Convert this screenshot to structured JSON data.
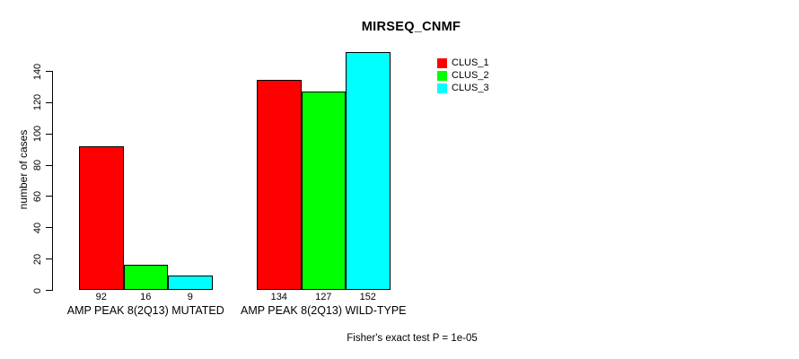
{
  "chart_data": {
    "type": "bar",
    "title": "MIRSEQ_CNMF",
    "ylabel": "number of cases",
    "xlabel": "",
    "footnote": "Fisher's exact test P = 1e-05",
    "yticks": [
      0,
      20,
      40,
      60,
      80,
      100,
      120,
      140
    ],
    "ylim": [
      0,
      152
    ],
    "grid": false,
    "legend_position": "top-right",
    "categories": [
      "AMP PEAK 8(2Q13) MUTATED",
      "AMP PEAK 8(2Q13) WILD-TYPE"
    ],
    "series": [
      {
        "name": "CLUS_1",
        "color": "#FF0000",
        "values": [
          92,
          134
        ]
      },
      {
        "name": "CLUS_2",
        "color": "#00FF00",
        "values": [
          16,
          127
        ]
      },
      {
        "name": "CLUS_3",
        "color": "#00FFFF",
        "values": [
          9,
          152
        ]
      }
    ]
  }
}
